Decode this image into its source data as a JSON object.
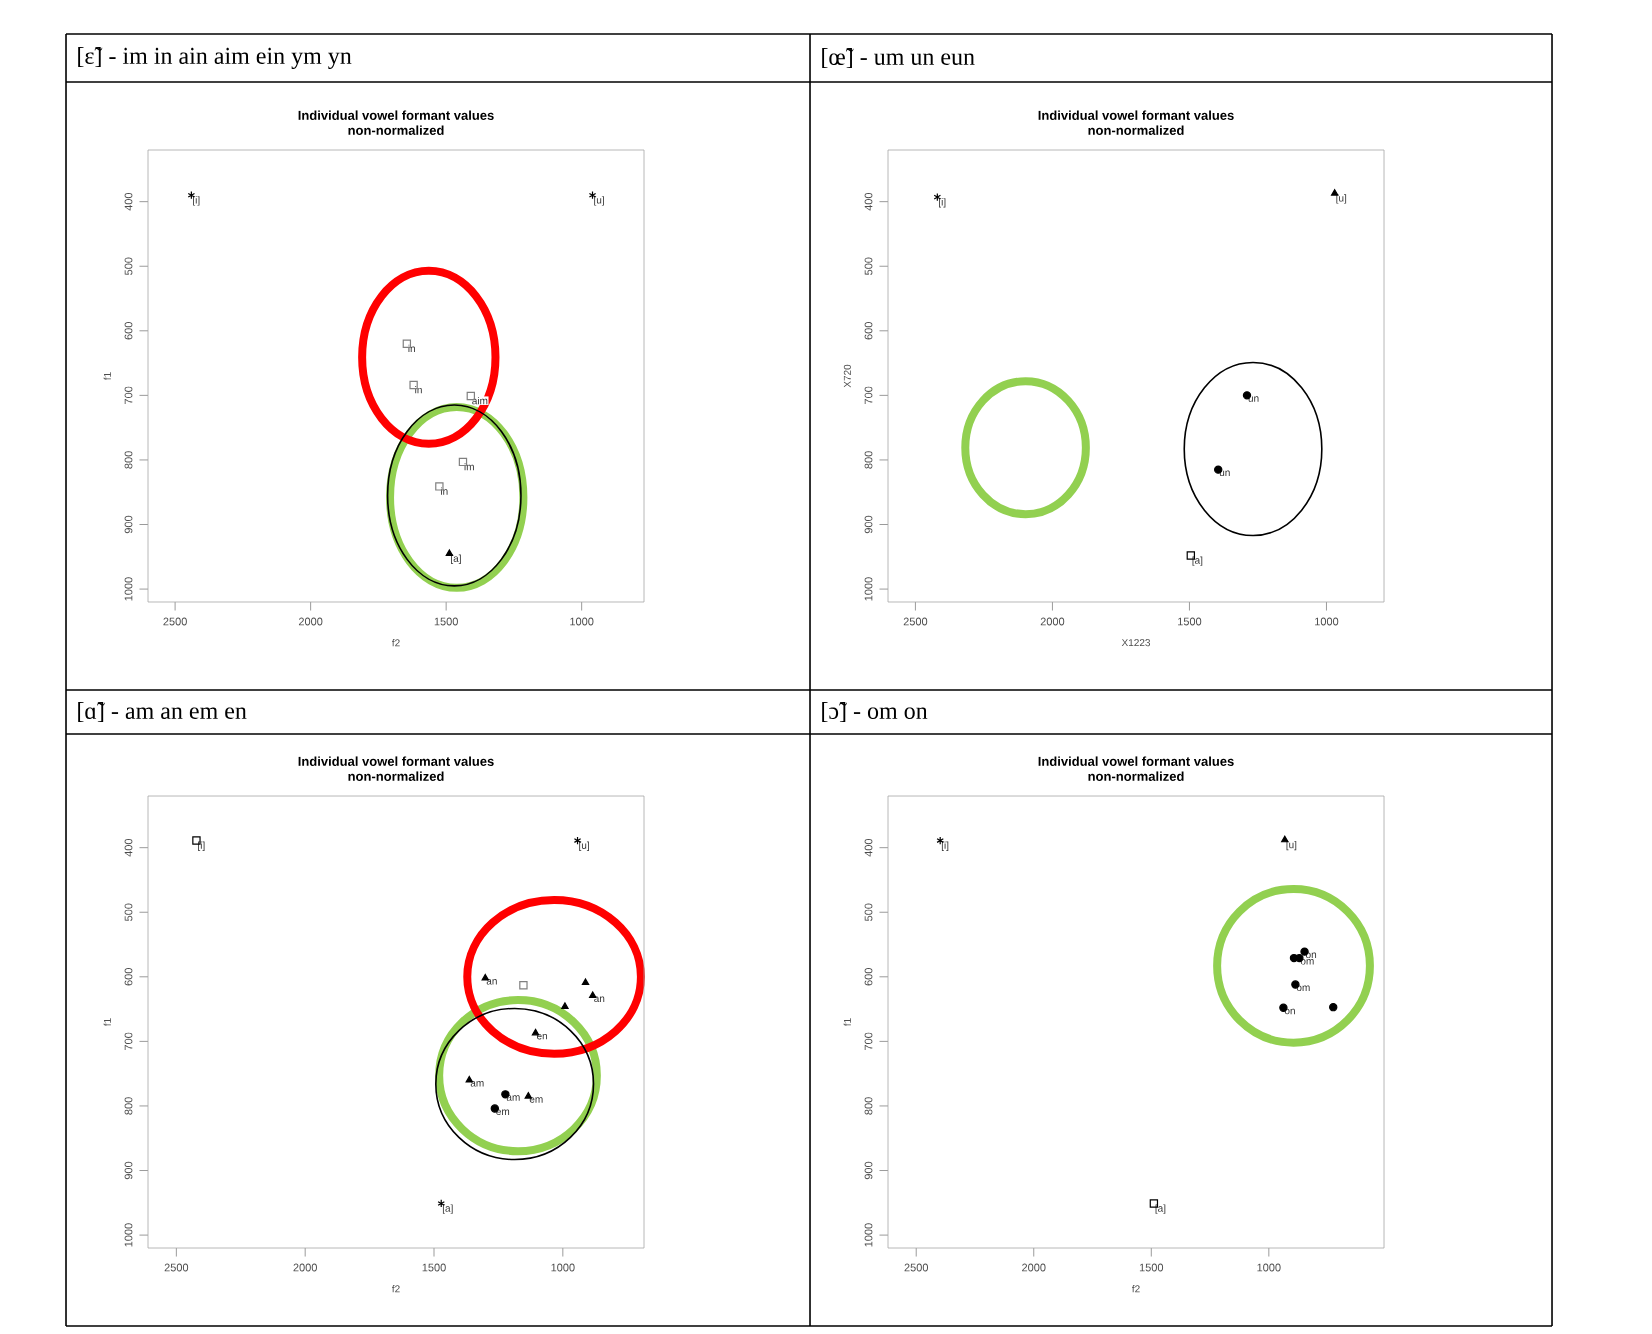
{
  "chart_data": [
    {
      "type": "scatter",
      "title": "Individual vowel formant values",
      "subtitle": "non-normalized",
      "xlabel": "f2",
      "ylabel": "f1",
      "xlim": [
        2600,
        770
      ],
      "ylim": [
        1020,
        320
      ],
      "xticks": [
        2500,
        2000,
        1500,
        1000
      ],
      "yticks": [
        400,
        500,
        600,
        700,
        800,
        900,
        1000
      ],
      "series": [
        {
          "color": "#000000",
          "marker": "cross",
          "x": [
            2440,
            960
          ],
          "values": [
            390,
            390
          ]
        },
        {
          "color": "#808080",
          "marker": "square",
          "x": [
            1645,
            1620,
            1409,
            1438,
            1525
          ],
          "values": [
            620,
            684,
            701,
            803,
            841
          ]
        },
        {
          "color": "#000000",
          "marker": "triangle",
          "x": [
            1488
          ],
          "values": [
            945
          ]
        }
      ],
      "annotations": [
        "[ɛ̃] - im in ain aim ein ym yn",
        {
          "text": "[i]",
          "x": 2440,
          "y": 390
        },
        {
          "text": "[u]",
          "x": 960,
          "y": 390
        },
        {
          "text": "in",
          "x": 1645,
          "y": 620
        },
        {
          "text": "in",
          "x": 1620,
          "y": 684
        },
        {
          "text": "aim",
          "x": 1409,
          "y": 701
        },
        {
          "text": "im",
          "x": 1438,
          "y": 803
        },
        {
          "text": "in",
          "x": 1525,
          "y": 841
        },
        {
          "text": "[a]",
          "x": 1488,
          "y": 945
        }
      ]
    },
    {
      "type": "scatter",
      "title": "Individual vowel formant values",
      "subtitle": "non-normalized",
      "xlabel": "X1223",
      "ylabel": "X720",
      "xlim": [
        2600,
        790
      ],
      "ylim": [
        1020,
        320
      ],
      "xticks": [
        2500,
        2000,
        1500,
        1000
      ],
      "yticks": [
        400,
        500,
        600,
        700,
        800,
        900,
        1000
      ],
      "series": [
        {
          "color": "#000000",
          "marker": "cross",
          "x": [
            2420
          ],
          "values": [
            393
          ]
        },
        {
          "color": "#000000",
          "marker": "triangle",
          "x": [
            970
          ],
          "values": [
            387
          ]
        },
        {
          "color": "#000000",
          "marker": "circle",
          "x": [
            1290,
            1395
          ],
          "values": [
            700,
            815
          ]
        },
        {
          "color": "#000000",
          "marker": "square",
          "x": [
            1495
          ],
          "values": [
            948
          ]
        }
      ],
      "annotations": [
        "[œ̃] - um un eun",
        {
          "text": "[i]",
          "x": 2420,
          "y": 393
        },
        {
          "text": "[u]",
          "x": 970,
          "y": 387
        },
        {
          "text": "un",
          "x": 1290,
          "y": 700
        },
        {
          "text": "un",
          "x": 1395,
          "y": 815
        },
        {
          "text": "[a]",
          "x": 1495,
          "y": 948
        }
      ]
    },
    {
      "type": "scatter",
      "title": "Individual vowel formant values",
      "subtitle": "non-normalized",
      "xlabel": "f2",
      "ylabel": "f1",
      "xlim": [
        2610,
        685
      ],
      "ylim": [
        1020,
        320
      ],
      "xticks": [
        2500,
        2000,
        1500,
        1000
      ],
      "yticks": [
        400,
        500,
        600,
        700,
        800,
        900,
        1000
      ],
      "series": [
        {
          "color": "#000000",
          "marker": "square",
          "x": [
            2422
          ],
          "values": [
            389
          ]
        },
        {
          "color": "#000000",
          "marker": "cross",
          "x": [
            943,
            1472
          ],
          "values": [
            389,
            951
          ]
        },
        {
          "color": "#000000",
          "marker": "triangle",
          "x": [
            1301,
            912,
            884,
            992,
            1106,
            1363,
            1134
          ],
          "values": [
            602,
            609,
            629,
            646,
            687,
            760,
            785
          ]
        },
        {
          "color": "#000000",
          "marker": "circle",
          "x": [
            1223,
            1264
          ],
          "values": [
            782,
            804
          ]
        },
        {
          "color": "#808080",
          "marker": "square",
          "x": [
            1153
          ],
          "values": [
            613
          ]
        }
      ],
      "annotations": [
        "[ɑ̃] - am an em en",
        {
          "text": "[i]",
          "x": 2422,
          "y": 389
        },
        {
          "text": "[u]",
          "x": 943,
          "y": 389
        },
        {
          "text": "[a]",
          "x": 1472,
          "y": 951
        },
        {
          "text": "an",
          "x": 1301,
          "y": 602
        },
        {
          "text": "an",
          "x": 884,
          "y": 629
        },
        {
          "text": "en",
          "x": 1106,
          "y": 687
        },
        {
          "text": "am",
          "x": 1363,
          "y": 760
        },
        {
          "text": "am",
          "x": 1223,
          "y": 782
        },
        {
          "text": "em",
          "x": 1264,
          "y": 804
        },
        {
          "text": "em",
          "x": 1134,
          "y": 785
        }
      ]
    },
    {
      "type": "scatter",
      "title": "Individual vowel formant values",
      "subtitle": "non-normalized",
      "xlabel": "f2",
      "ylabel": "f1",
      "xlim": [
        2620,
        510
      ],
      "ylim": [
        1020,
        320
      ],
      "xticks": [
        2500,
        2000,
        1500,
        1000
      ],
      "yticks": [
        400,
        500,
        600,
        700,
        800,
        900,
        1000
      ],
      "series": [
        {
          "color": "#000000",
          "marker": "cross",
          "x": [
            2398
          ],
          "values": [
            389
          ]
        },
        {
          "color": "#000000",
          "marker": "triangle",
          "x": [
            932
          ],
          "values": [
            388
          ]
        },
        {
          "color": "#000000",
          "marker": "square",
          "x": [
            1489
          ],
          "values": [
            951
          ]
        },
        {
          "color": "#000000",
          "marker": "circle",
          "x": [
            893,
            848,
            870,
            887,
            938,
            726
          ],
          "values": [
            571,
            561,
            571,
            612,
            648,
            647
          ]
        }
      ],
      "annotations": [
        "[ɔ̃] - om on",
        {
          "text": "[i]",
          "x": 2398,
          "y": 389
        },
        {
          "text": "[u]",
          "x": 932,
          "y": 388
        },
        {
          "text": "[a]",
          "x": 1489,
          "y": 951
        },
        {
          "text": "om",
          "x": 870,
          "y": 571
        },
        {
          "text": "on",
          "x": 848,
          "y": 561
        },
        {
          "text": "om",
          "x": 887,
          "y": 612
        },
        {
          "text": "on",
          "x": 938,
          "y": 648
        }
      ]
    }
  ]
}
